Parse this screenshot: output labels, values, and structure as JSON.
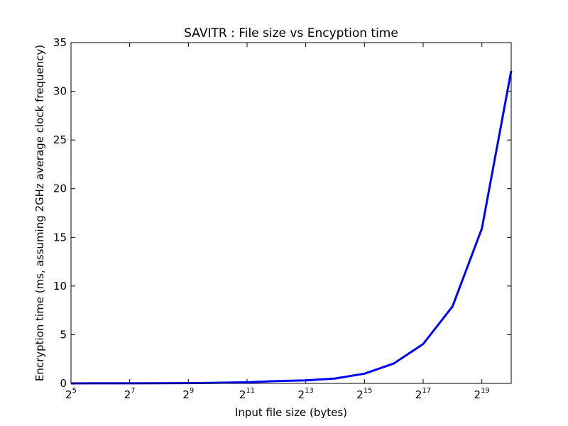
{
  "chart_data": {
    "type": "line",
    "title": "SAVITR : File size vs Encyption time",
    "xlabel": "Input file size (bytes)",
    "ylabel": "Encryption time (ms, assuming 2GHz average clock frequency)",
    "x_scale": "log2",
    "xlim": [
      32,
      1048576
    ],
    "ylim": [
      0,
      35
    ],
    "x_ticks": [
      {
        "base": "2",
        "exp": "5",
        "value": 32
      },
      {
        "base": "2",
        "exp": "7",
        "value": 128
      },
      {
        "base": "2",
        "exp": "9",
        "value": 512
      },
      {
        "base": "2",
        "exp": "11",
        "value": 2048
      },
      {
        "base": "2",
        "exp": "13",
        "value": 8192
      },
      {
        "base": "2",
        "exp": "15",
        "value": 32768
      },
      {
        "base": "2",
        "exp": "17",
        "value": 131072
      },
      {
        "base": "2",
        "exp": "19",
        "value": 524288
      }
    ],
    "y_ticks": [
      0,
      5,
      10,
      15,
      20,
      25,
      30,
      35
    ],
    "grid": false,
    "series": [
      {
        "color": "#0000ff",
        "x": [
          32,
          64,
          128,
          256,
          512,
          1024,
          2048,
          4096,
          8192,
          16384,
          32768,
          65536,
          131072,
          262144,
          524288,
          1048576
        ],
        "y": [
          0.002,
          0.004,
          0.008,
          0.016,
          0.031,
          0.062,
          0.12,
          0.24,
          0.31,
          0.5,
          1.0,
          2.05,
          4.05,
          7.9,
          15.9,
          32.1
        ]
      }
    ]
  }
}
